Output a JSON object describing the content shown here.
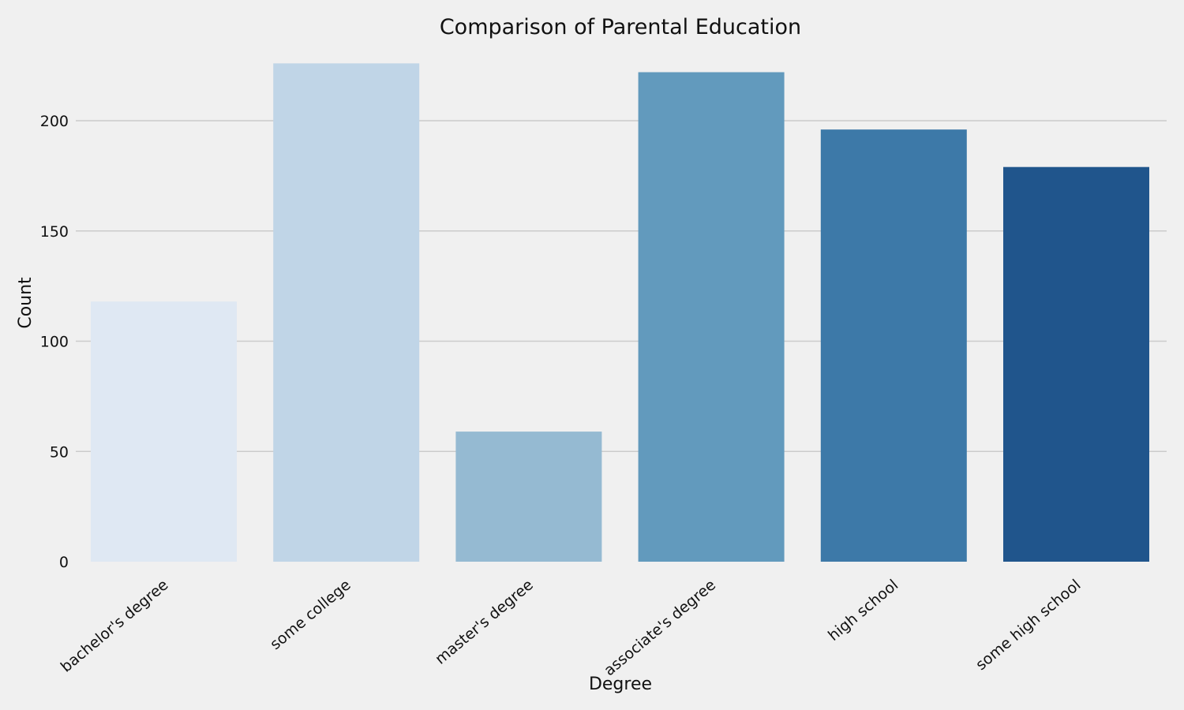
{
  "chart_data": {
    "type": "bar",
    "title": "Comparison of Parental Education",
    "xlabel": "Degree",
    "ylabel": "Count",
    "categories": [
      "bachelor's degree",
      "some college",
      "master's degree",
      "associate's degree",
      "high school",
      "some high school"
    ],
    "values": [
      118,
      226,
      59,
      222,
      196,
      179
    ],
    "ylim": [
      0,
      236
    ],
    "yticks": [
      0,
      50,
      100,
      150,
      200
    ],
    "colors": [
      "#dfe8f3",
      "#c0d5e7",
      "#95bad2",
      "#629abd",
      "#3d79a8",
      "#20558c"
    ],
    "grid": "horizontal",
    "legend": "none"
  }
}
